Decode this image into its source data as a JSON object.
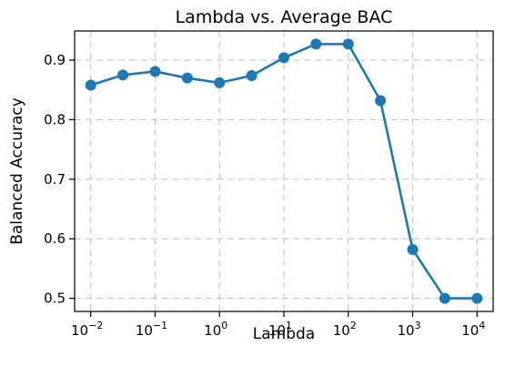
{
  "chart_data": {
    "type": "line",
    "title": "Lambda vs. Average BAC",
    "xlabel": "Lambda",
    "ylabel": "Balanced Accuracy",
    "x_scale": "log",
    "x": [
      0.01,
      0.0316,
      0.1,
      0.316,
      1,
      3.16,
      10,
      31.6,
      100,
      316,
      1000,
      3160,
      10000
    ],
    "series": [
      {
        "values": [
          0.858,
          0.875,
          0.881,
          0.87,
          0.862,
          0.874,
          0.904,
          0.927,
          0.927,
          0.832,
          0.582,
          0.5,
          0.5
        ],
        "color": "#1f77b4"
      }
    ],
    "xlim": [
      0.00562,
      17800
    ],
    "ylim": [
      0.478,
      0.949
    ],
    "x_ticks": [
      {
        "base": "10",
        "exp": "−2",
        "value": 0.01
      },
      {
        "base": "10",
        "exp": "−1",
        "value": 0.1
      },
      {
        "base": "10",
        "exp": "0",
        "value": 1
      },
      {
        "base": "10",
        "exp": "1",
        "value": 10
      },
      {
        "base": "10",
        "exp": "2",
        "value": 100
      },
      {
        "base": "10",
        "exp": "3",
        "value": 1000
      },
      {
        "base": "10",
        "exp": "4",
        "value": 10000
      }
    ],
    "y_ticks": [
      {
        "label": "0.5",
        "value": 0.5
      },
      {
        "label": "0.6",
        "value": 0.6
      },
      {
        "label": "0.7",
        "value": 0.7
      },
      {
        "label": "0.8",
        "value": 0.8
      },
      {
        "label": "0.9",
        "value": 0.9
      }
    ],
    "grid": true
  }
}
